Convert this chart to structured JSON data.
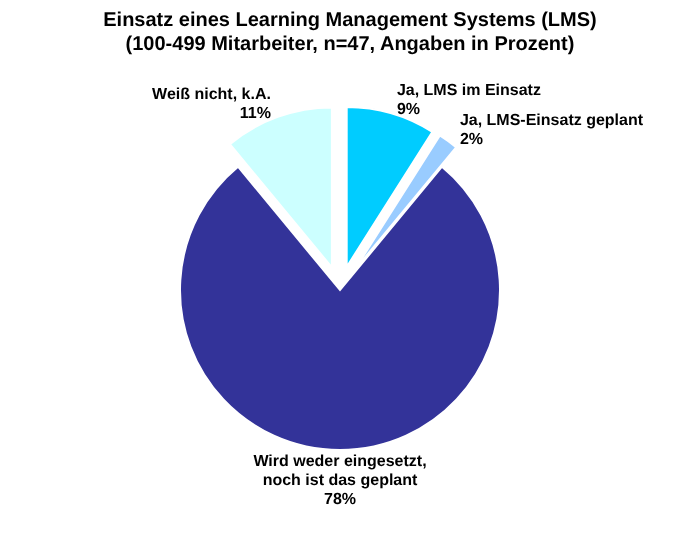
{
  "chart_data": {
    "type": "pie",
    "title": "Einsatz eines Learning Management Systems (LMS)",
    "subtitle": "(100-499 Mitarbeiter, n=47, Angaben in Prozent)",
    "categories": [
      "Ja, LMS im Einsatz",
      "Ja, LMS-Einsatz geplant",
      "Wird weder eingesetzt, noch ist das geplant",
      "Weiß nicht, k.A."
    ],
    "values": [
      9,
      2,
      78,
      11
    ],
    "value_labels": [
      "9%",
      "2%",
      "78%",
      "11%"
    ],
    "colors": [
      "#00ccff",
      "#99ccff",
      "#333399",
      "#ccffff"
    ]
  }
}
